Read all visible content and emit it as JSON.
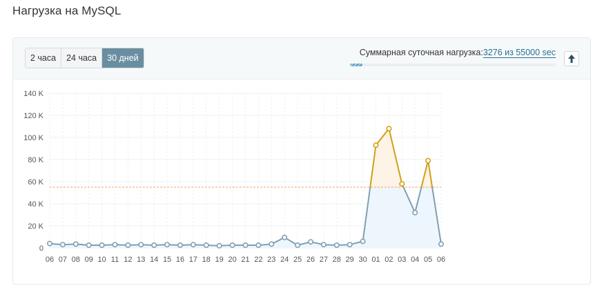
{
  "page": {
    "title": "Нагрузка на MySQL"
  },
  "tabs": [
    {
      "label": "2 часа",
      "active": false
    },
    {
      "label": "24 часа",
      "active": false
    },
    {
      "label": "30 дней",
      "active": true
    }
  ],
  "summary": {
    "label": "Суммарная суточная нагрузка:",
    "value": "3276 из 55000 sec",
    "used": 3276,
    "limit": 55000
  },
  "colors": {
    "normal": "#7f9fb3",
    "excess": "#d2a014",
    "limit_line": "#f0a070",
    "fill_normal": "#eef6fd",
    "fill_excess": "#fdf3e6",
    "accent": "#6a8ea1"
  },
  "chart_data": {
    "type": "line",
    "title": "",
    "xlabel": "",
    "ylabel": "",
    "categories": [
      "06",
      "07",
      "08",
      "09",
      "10",
      "11",
      "12",
      "13",
      "14",
      "15",
      "16",
      "17",
      "18",
      "19",
      "20",
      "21",
      "22",
      "23",
      "24",
      "25",
      "26",
      "27",
      "28",
      "29",
      "30",
      "01",
      "02",
      "03",
      "04",
      "05",
      "06"
    ],
    "series": [
      {
        "values": [
          4000,
          3000,
          3500,
          2500,
          2500,
          3000,
          2500,
          3000,
          2500,
          3000,
          2500,
          3000,
          2500,
          2000,
          2500,
          2500,
          2500,
          3500,
          9500,
          2500,
          5500,
          3000,
          2500,
          3000,
          6000,
          93000,
          108000,
          58000,
          32000,
          79000,
          3500
        ]
      }
    ],
    "limit": 55000,
    "ylim": [
      0,
      140000
    ],
    "yticks": [
      0,
      20000,
      40000,
      60000,
      80000,
      100000,
      120000,
      140000
    ],
    "ytick_labels": [
      "0",
      "20 K",
      "40 K",
      "60 K",
      "80 K",
      "100 K",
      "120 K",
      "140 K"
    ],
    "grid": true,
    "legend": "none"
  }
}
